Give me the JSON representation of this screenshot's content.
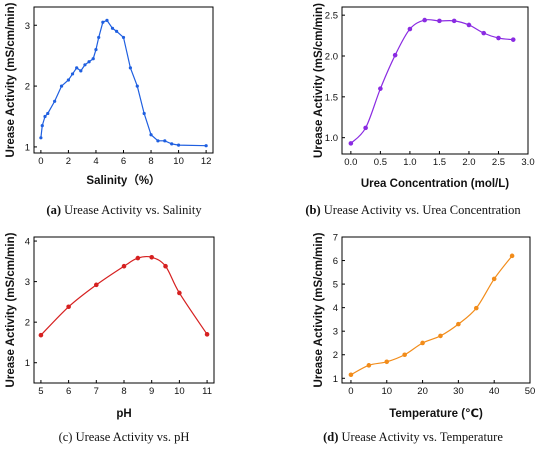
{
  "chart_data": [
    {
      "type": "line",
      "xlabel": "Salinity（%）",
      "ylabel": "Urease Activity (mS/cm/min)",
      "xlim": [
        -0.5,
        12.5
      ],
      "ylim": [
        0.9,
        3.3
      ],
      "xticks": [
        0,
        2,
        4,
        6,
        8,
        10,
        12
      ],
      "yticks": [
        1,
        2,
        3
      ],
      "color": "#1f5fe0",
      "x": [
        0,
        0.1,
        0.3,
        0.5,
        1.0,
        1.5,
        2.0,
        2.3,
        2.6,
        2.9,
        3.2,
        3.5,
        3.8,
        4.0,
        4.2,
        4.5,
        4.8,
        5.2,
        5.5,
        6.0,
        6.5,
        7.0,
        7.5,
        8.0,
        8.5,
        9.0,
        9.5,
        10.0,
        12.0
      ],
      "y": [
        1.15,
        1.35,
        1.5,
        1.55,
        1.75,
        2.0,
        2.1,
        2.2,
        2.3,
        2.25,
        2.35,
        2.4,
        2.45,
        2.6,
        2.8,
        3.05,
        3.08,
        2.95,
        2.9,
        2.8,
        2.3,
        2.0,
        1.55,
        1.2,
        1.1,
        1.1,
        1.05,
        1.03,
        1.02
      ],
      "caption_letter": "(a)",
      "caption_text": " Urease Activity vs. Salinity"
    },
    {
      "type": "line",
      "xlabel": "Urea Concentration (mol/L)",
      "ylabel": "Urease Activity (mS/cm/min)",
      "xlim": [
        -0.15,
        3.0
      ],
      "ylim": [
        0.8,
        2.6
      ],
      "xticks": [
        0.0,
        0.5,
        1.0,
        1.5,
        2.0,
        2.5,
        3.0
      ],
      "xtick_labels": [
        "0.0",
        "0.5",
        "1.0",
        "1.5",
        "2.0",
        "2.5",
        "3.0"
      ],
      "yticks": [
        1.0,
        1.5,
        2.0,
        2.5
      ],
      "ytick_labels": [
        "1.0",
        "1.5",
        "2.0",
        "2.5"
      ],
      "color": "#8a2be2",
      "x": [
        0,
        0.25,
        0.5,
        0.75,
        1.0,
        1.25,
        1.5,
        1.75,
        2.0,
        2.25,
        2.5,
        2.75
      ],
      "y": [
        0.93,
        1.12,
        1.6,
        2.01,
        2.33,
        2.44,
        2.43,
        2.43,
        2.38,
        2.28,
        2.22,
        2.2
      ],
      "caption_letter": "(b)",
      "caption_text": " Urease Activity vs. Urea Concentration"
    },
    {
      "type": "line",
      "xlabel": "pH",
      "ylabel": "Urease Activity (mS/cm/min)",
      "xlim": [
        4.75,
        11.25
      ],
      "ylim": [
        0.5,
        4.1
      ],
      "xticks": [
        5,
        6,
        7,
        8,
        9,
        10,
        11
      ],
      "yticks": [
        1,
        2,
        3,
        4
      ],
      "color": "#d62020",
      "x": [
        5,
        6,
        7,
        8,
        8.5,
        9,
        9.5,
        10,
        11
      ],
      "y": [
        1.68,
        2.38,
        2.92,
        3.38,
        3.58,
        3.6,
        3.38,
        2.72,
        1.7
      ],
      "caption_letter": "(c)",
      "caption_text": " Urease Activity vs. pH",
      "caption_bold": false
    },
    {
      "type": "line",
      "xlabel": "Temperature (℃)",
      "ylabel": "Urease Activity (mS/cm/min)",
      "xlim": [
        -2.5,
        50
      ],
      "ylim": [
        0.8,
        7.0
      ],
      "xticks": [
        0,
        10,
        20,
        30,
        40,
        50
      ],
      "yticks": [
        1,
        2,
        3,
        4,
        5,
        6,
        7
      ],
      "color": "#f28c1a",
      "x": [
        0,
        5,
        10,
        15,
        20,
        25,
        30,
        35,
        40,
        45
      ],
      "y": [
        1.15,
        1.55,
        1.7,
        2.0,
        2.5,
        2.8,
        3.3,
        3.98,
        5.22,
        6.2
      ],
      "caption_letter": "(d)",
      "caption_text": " Urease Activity vs. Temperature"
    }
  ]
}
